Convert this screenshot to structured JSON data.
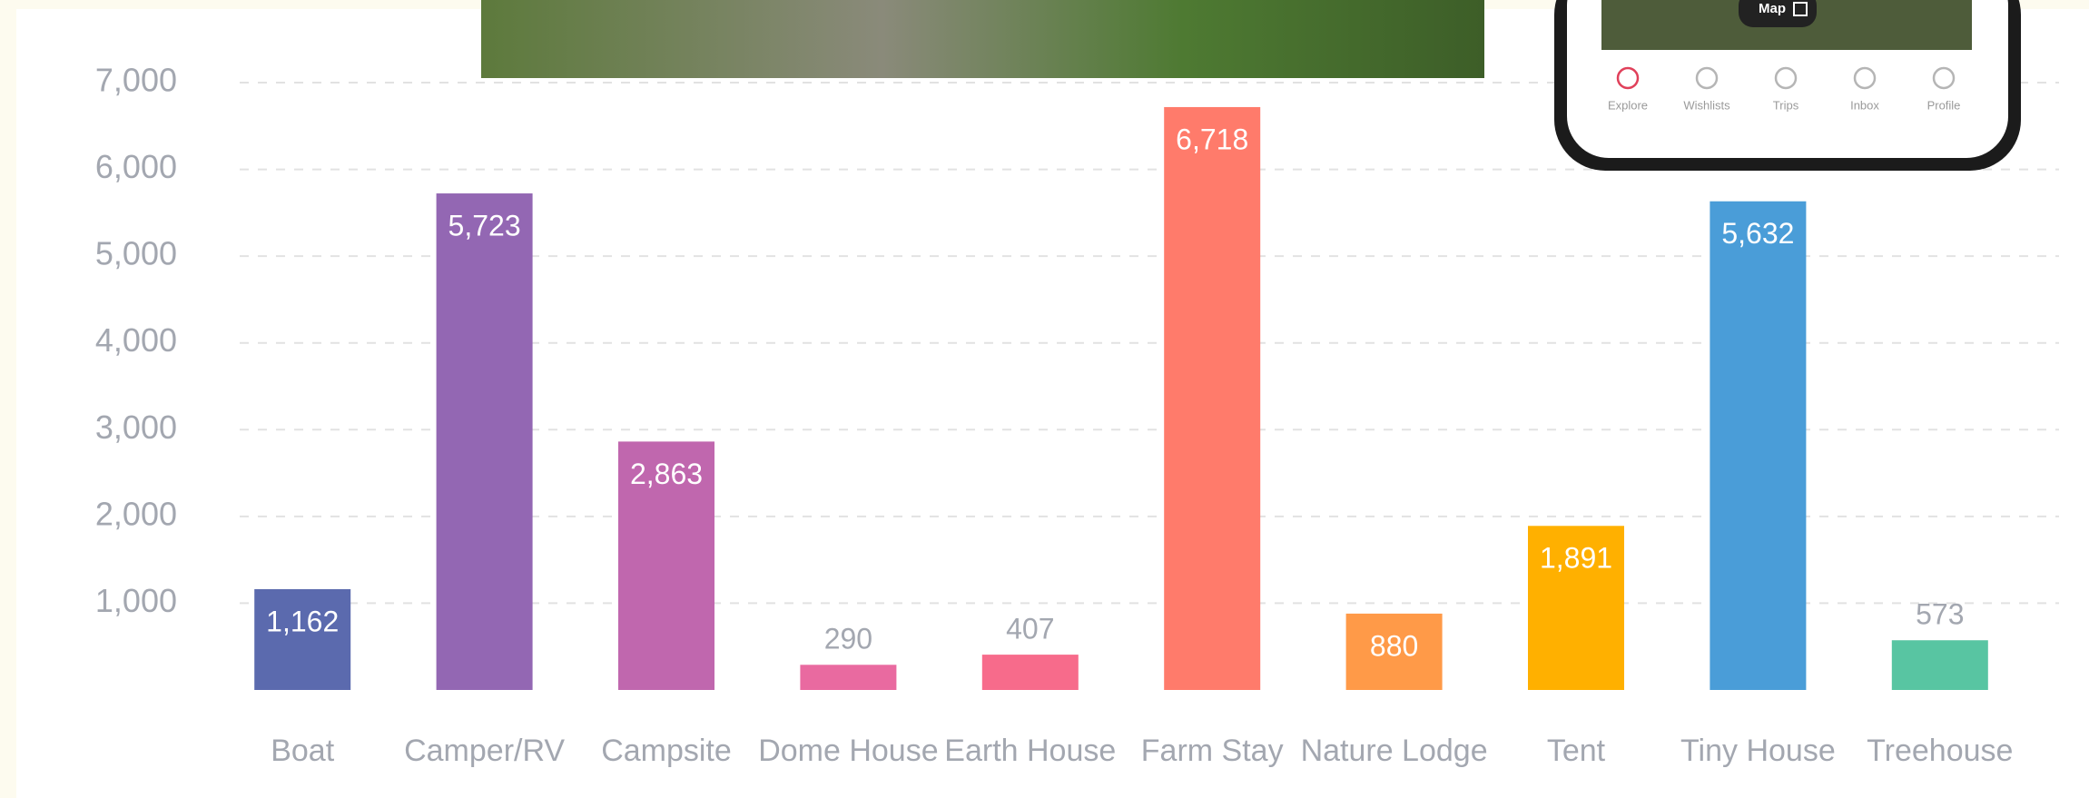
{
  "chart_data": {
    "type": "bar",
    "categories": [
      "Boat",
      "Camper/RV",
      "Campsite",
      "Dome House",
      "Earth House",
      "Farm Stay",
      "Nature Lodge",
      "Tent",
      "Tiny House",
      "Treehouse"
    ],
    "values": [
      1162,
      5723,
      2863,
      290,
      407,
      6718,
      880,
      1891,
      5632,
      573
    ],
    "value_labels": [
      "1,162",
      "5,723",
      "2,863",
      "290",
      "407",
      "6,718",
      "880",
      "1,891",
      "5,632",
      "573"
    ],
    "colors": [
      "#5b6aae",
      "#9367b3",
      "#c067ae",
      "#e96aa0",
      "#f76b8b",
      "#ff7b6b",
      "#ff9a48",
      "#ffb000",
      "#4a9dd8",
      "#58c5a2"
    ],
    "ylim": [
      0,
      7000
    ],
    "yticks": [
      {
        "value": 1000,
        "label": "1,000"
      },
      {
        "value": 2000,
        "label": "2,000"
      },
      {
        "value": 3000,
        "label": "3,000"
      },
      {
        "value": 4000,
        "label": "4,000"
      },
      {
        "value": 5000,
        "label": "5,000"
      },
      {
        "value": 6000,
        "label": "6,000"
      },
      {
        "value": 7000,
        "label": "7,000"
      }
    ],
    "grid": true
  },
  "phone": {
    "map_button": "Map",
    "tabs": [
      "Explore",
      "Wishlists",
      "Trips",
      "Inbox",
      "Profile"
    ]
  }
}
